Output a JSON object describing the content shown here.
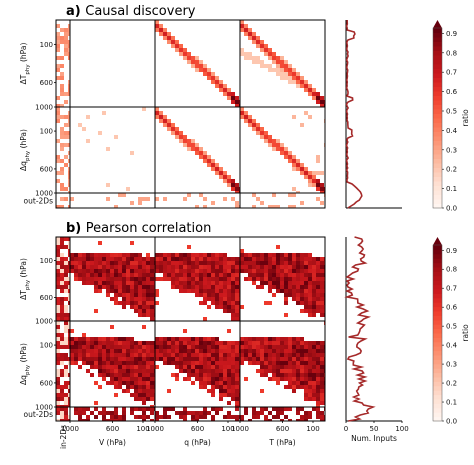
{
  "panels": [
    {
      "id": "a",
      "letter": "a)",
      "title": "Causal discovery",
      "density": "sparse"
    },
    {
      "id": "b",
      "letter": "b)",
      "title": "Pearson correlation",
      "density": "dense"
    }
  ],
  "chart_data": {
    "type": "heatmap",
    "row_groups": [
      {
        "label_main": "ΔT",
        "label_sub": "phy",
        "label_unit": "(hPa)",
        "ticks": [
          "100",
          "600",
          "1000"
        ]
      },
      {
        "label_main": "Δq",
        "label_sub": "phy",
        "label_unit": "(hPa)",
        "ticks": [
          "100",
          "600",
          "1000"
        ]
      },
      {
        "label_main": "out-2Ds",
        "label_sub": "",
        "label_unit": "",
        "ticks": []
      }
    ],
    "col_groups": [
      {
        "label": "in-2Ds",
        "ticks": []
      },
      {
        "label": "V (hPa)",
        "ticks": [
          "1000",
          "600",
          "100"
        ]
      },
      {
        "label": "q (hPa)",
        "ticks": [
          "1000",
          "600",
          "100"
        ]
      },
      {
        "label": "T (hPa)",
        "ticks": [
          "1000",
          "600",
          "100"
        ]
      }
    ],
    "colorbar": {
      "label": "ratio",
      "ticks": [
        "0.0",
        "0.1",
        "0.2",
        "0.3",
        "0.4",
        "0.5",
        "0.6",
        "0.7",
        "0.8",
        "0.9"
      ],
      "min": 0,
      "max": 0.9,
      "color_low": "#fff5f0",
      "color_high": "#67000d"
    },
    "side_profile": {
      "xlabel": "Num. Inputs",
      "xticks": [
        "0",
        "50",
        "100"
      ],
      "xlim": [
        0,
        100
      ],
      "color": "#a52a2a"
    }
  }
}
